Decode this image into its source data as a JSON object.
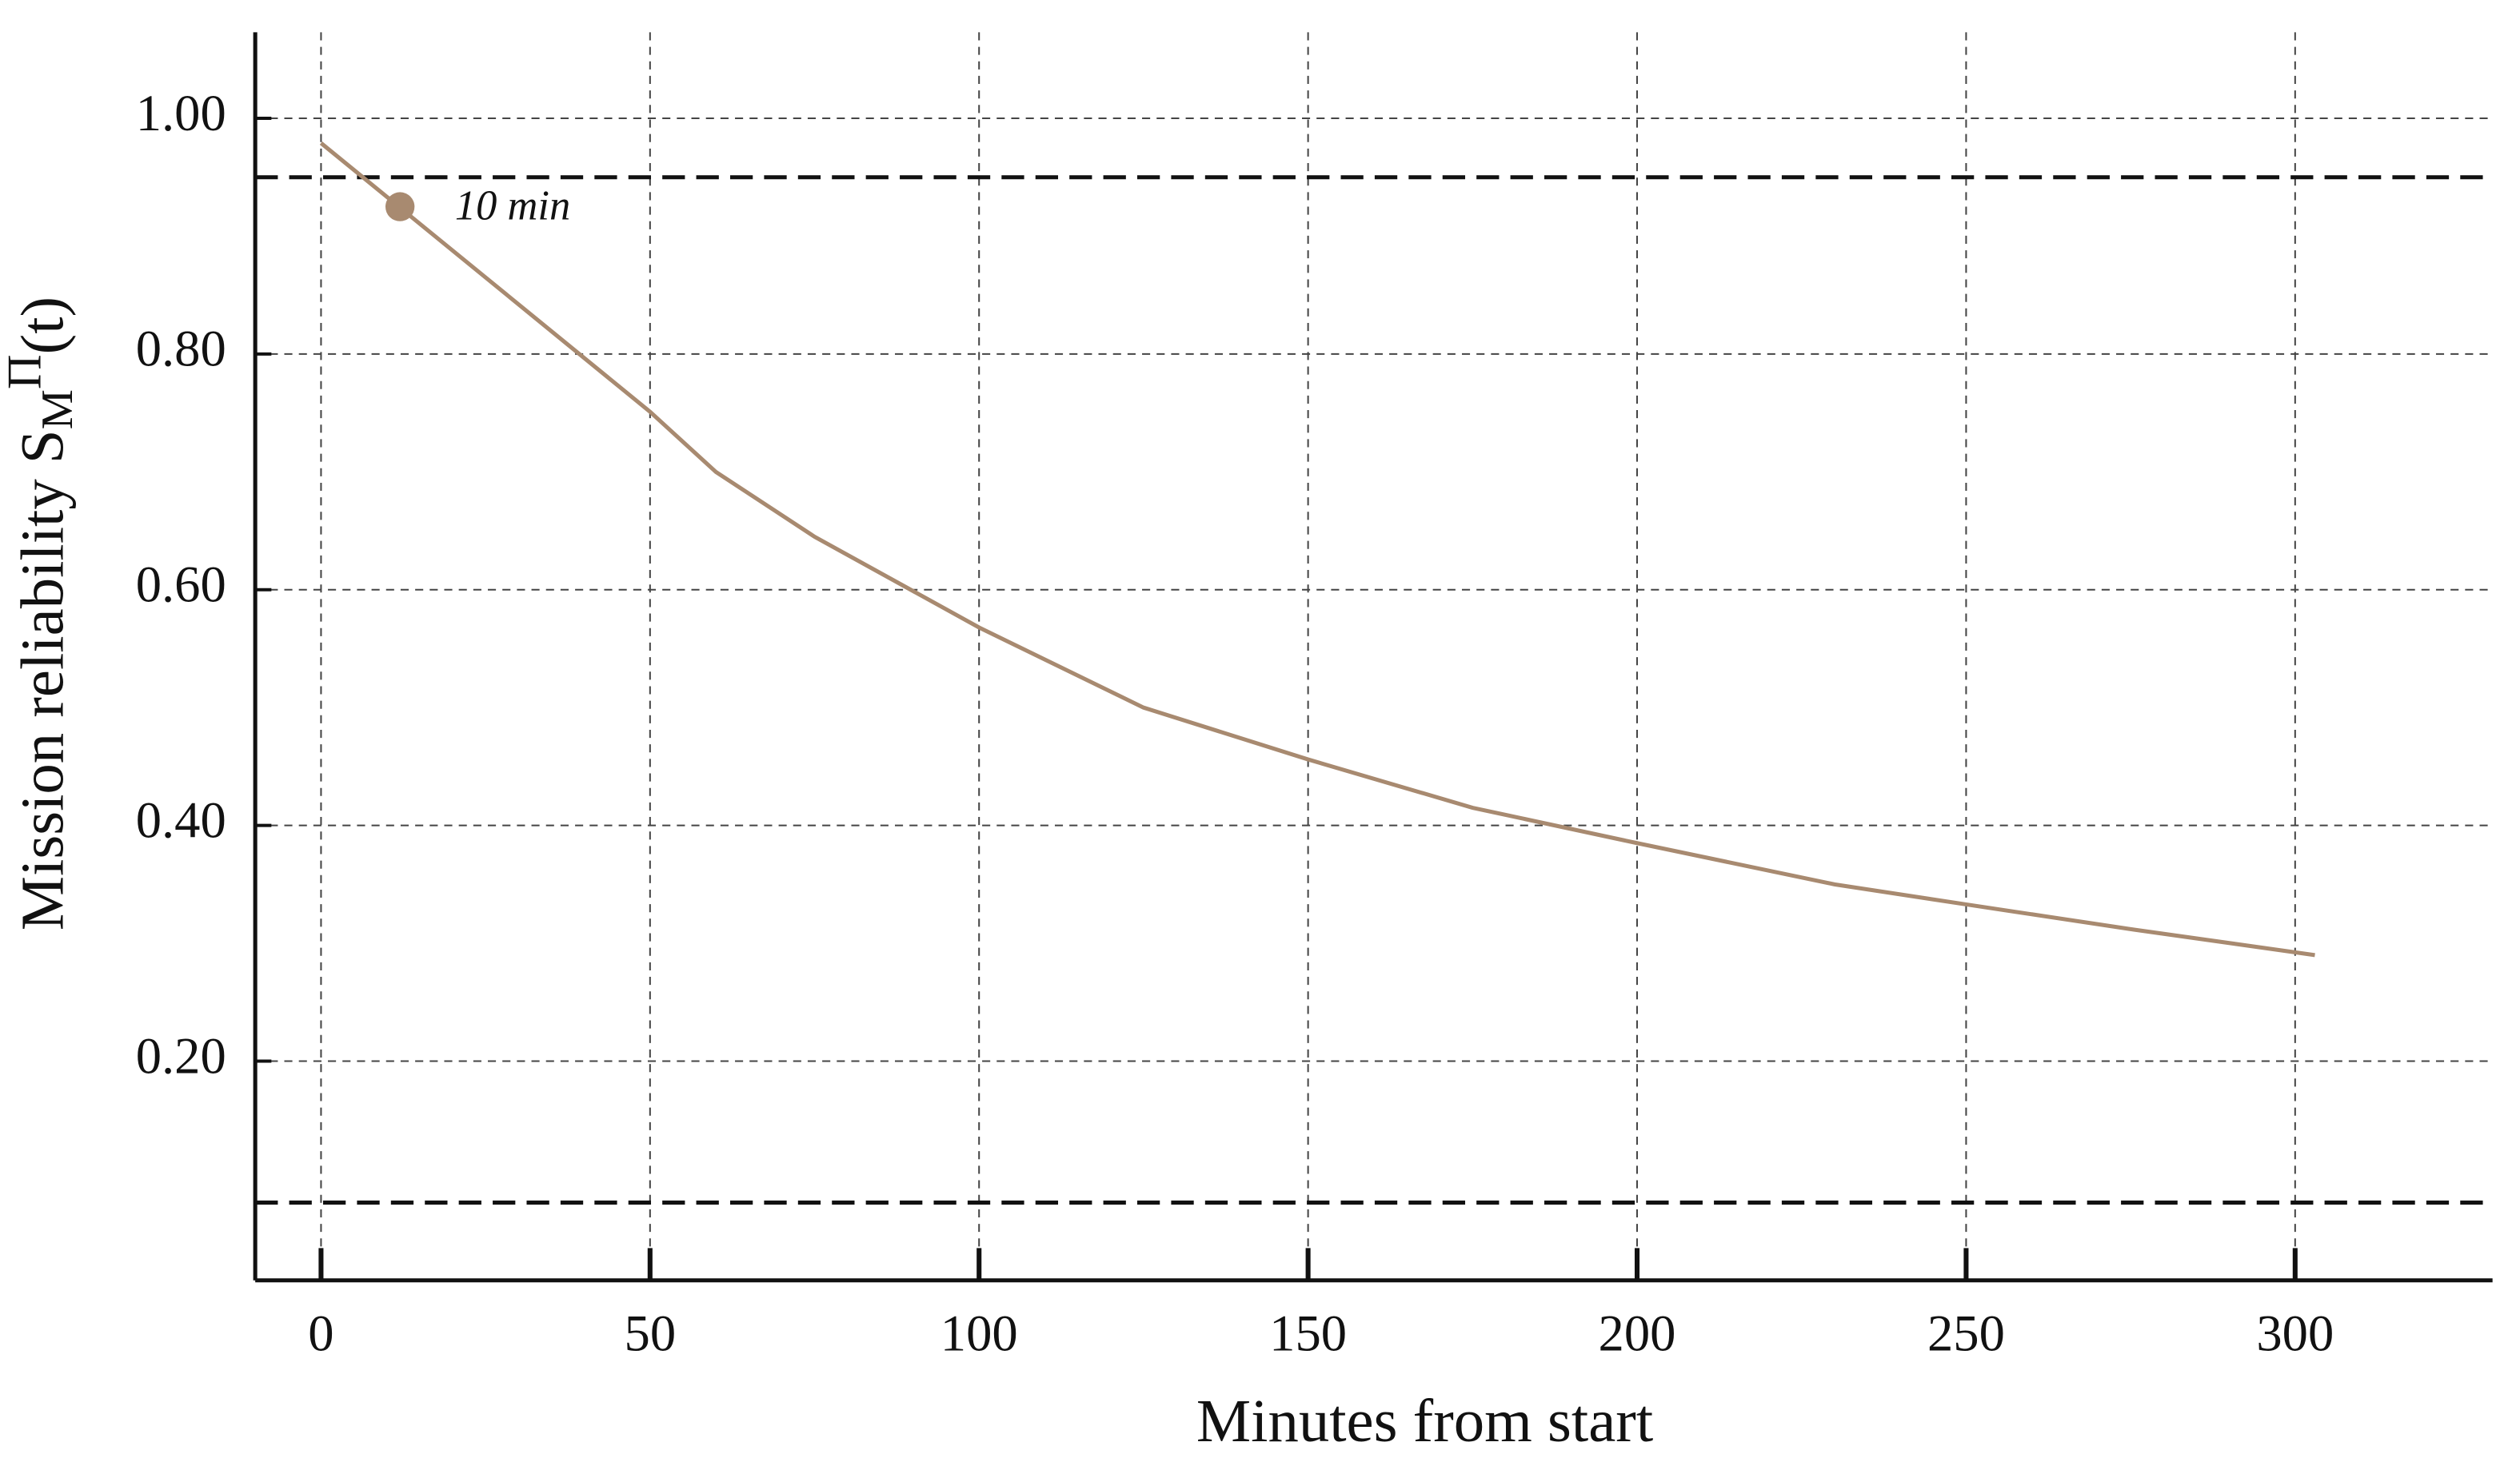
{
  "chart_data": {
    "type": "line",
    "x_label": "Minutes from start",
    "y_label": {
      "text": "Mission reliability S",
      "sub": "M",
      "sup": "Π",
      "tail": "(t)"
    },
    "series": [
      {
        "color": "#a88a70",
        "x": [
          0,
          25,
          50,
          60,
          75,
          100,
          125,
          150,
          175,
          200,
          230,
          250,
          275,
          303
        ],
        "values": [
          0.979,
          0.865,
          0.751,
          0.7,
          0.645,
          0.568,
          0.5,
          0.456,
          0.415,
          0.385,
          0.35,
          0.333,
          0.312,
          0.29
        ]
      }
    ],
    "annotations": [
      {
        "text": "10 min",
        "x": 12,
        "y": 0.925,
        "color": "#a88a70"
      }
    ],
    "reference_lines": [
      0.95,
      0.08
    ],
    "xlim": [
      -10,
      330
    ],
    "ylim": [
      0.014,
      1.073
    ],
    "xticks": [
      0,
      50,
      100,
      150,
      200,
      250,
      300
    ],
    "yticks": [
      {
        "value": 0.2,
        "label": "0.20"
      },
      {
        "value": 0.4,
        "label": "0.40"
      },
      {
        "value": 0.6,
        "label": "0.60"
      },
      {
        "value": 0.8,
        "label": "0.80"
      },
      {
        "value": 1.0,
        "label": "1.00"
      }
    ],
    "grid": true
  }
}
